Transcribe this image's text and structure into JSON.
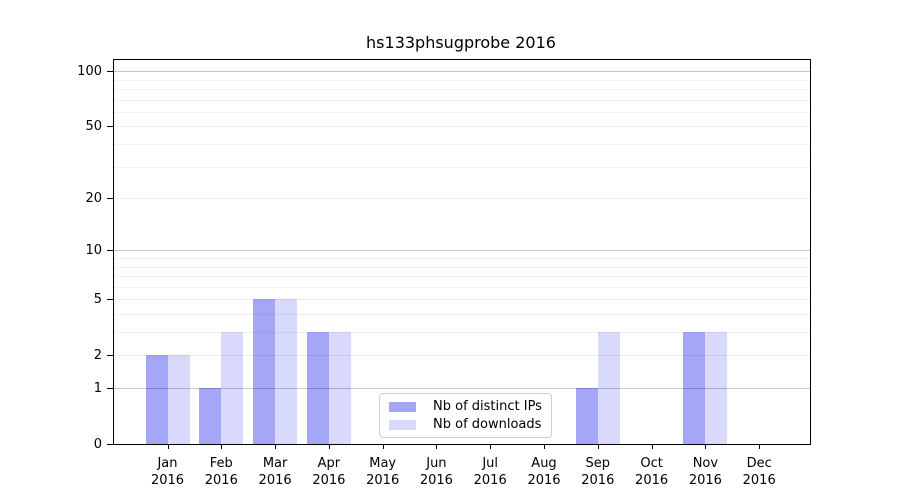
{
  "chart_data": {
    "type": "bar",
    "title": "hs133phsugprobe 2016",
    "categories": [
      "Jan 2016",
      "Feb 2016",
      "Mar 2016",
      "Apr 2016",
      "May 2016",
      "Jun 2016",
      "Jul 2016",
      "Aug 2016",
      "Sep 2016",
      "Oct 2016",
      "Nov 2016",
      "Dec 2016"
    ],
    "series": [
      {
        "name": "Nb of distinct IPs",
        "color": "rgba(0,0,238,0.35)",
        "color_hex": "#a6a6f9",
        "values": [
          2,
          1,
          5,
          3,
          0,
          0,
          0,
          0,
          1,
          0,
          3,
          0
        ]
      },
      {
        "name": "Nb of downloads",
        "color": "rgba(0,0,238,0.15)",
        "color_hex": "#d9d9fc",
        "values": [
          2,
          3,
          5,
          3,
          0,
          0,
          0,
          0,
          3,
          0,
          3,
          0
        ]
      }
    ],
    "xlabel": "",
    "ylabel": "",
    "yscale": "log1p",
    "ylim": [
      0,
      115
    ],
    "yticks": [
      0,
      1,
      2,
      5,
      10,
      20,
      50,
      100
    ],
    "minor_gridlines": [
      3,
      4,
      6,
      7,
      8,
      9,
      30,
      40,
      60,
      70,
      80,
      90
    ],
    "grid": true,
    "legend_position": "lower center"
  }
}
